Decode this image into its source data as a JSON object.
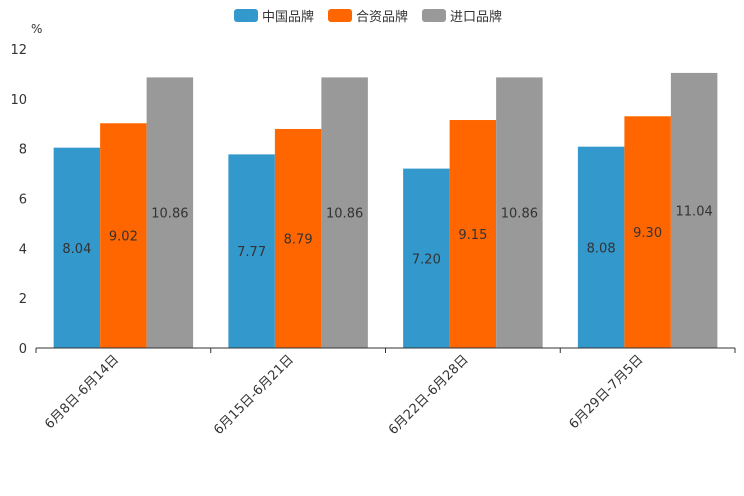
{
  "chart_data": {
    "type": "bar",
    "unit_label": "%",
    "categories": [
      "6月8日-6月14日",
      "6月15日-6月21日",
      "6月22日-6月28日",
      "6月29日-7月5日"
    ],
    "series": [
      {
        "name": "中国品牌",
        "color": "#3398cc",
        "values": [
          8.04,
          7.77,
          7.2,
          8.08
        ],
        "labels": [
          "8.04",
          "7.77",
          "7.20",
          "8.08"
        ]
      },
      {
        "name": "合资品牌",
        "color": "#ff6600",
        "values": [
          9.02,
          8.79,
          9.15,
          9.3
        ],
        "labels": [
          "9.02",
          "8.79",
          "9.15",
          "9.30"
        ]
      },
      {
        "name": "进口品牌",
        "color": "#999999",
        "values": [
          10.86,
          10.86,
          10.86,
          11.04
        ],
        "labels": [
          "10.86",
          "10.86",
          "10.86",
          "11.04"
        ]
      }
    ],
    "ylim": [
      0,
      12
    ],
    "yticks": [
      0,
      2,
      4,
      6,
      8,
      10,
      12
    ],
    "legend_position": "top-center",
    "grid": false
  }
}
